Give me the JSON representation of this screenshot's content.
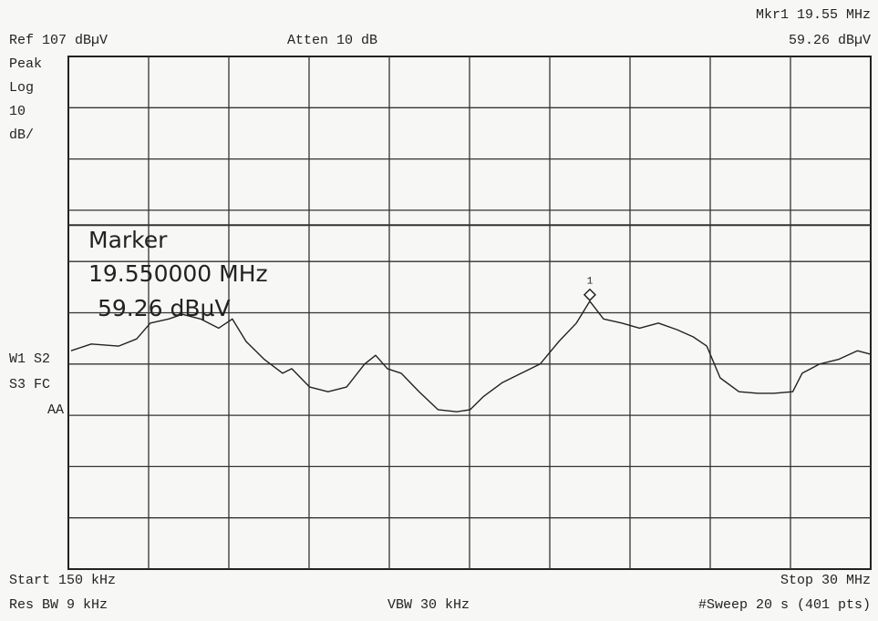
{
  "header": {
    "ref": "Ref 107 dBµV",
    "atten": "Atten 10 dB",
    "marker_freq": "Mkr1  19.55 MHz",
    "marker_level": "59.26 dBµV"
  },
  "side": {
    "detector": "Peak",
    "scale_type": "Log",
    "scale_value": "10",
    "scale_unit": "dB/",
    "trace_line1": "W1  S2",
    "trace_line2": "S3  FC",
    "trace_line3": "AA"
  },
  "marker_box": {
    "title": "Marker",
    "freq": "19.550000 MHz",
    "level": "59.26 dBµV"
  },
  "footer": {
    "start": "Start 150 kHz",
    "stop": "Stop 30 MHz",
    "rbw": "Res BW 9 kHz",
    "vbw": "VBW 30 kHz",
    "sweep": "#Sweep 20 s (401 pts)"
  },
  "chart_data": {
    "type": "line",
    "xlim": [
      0.15,
      30
    ],
    "ylim": [
      7,
      107
    ],
    "color": "#222222",
    "x": [
      0.25,
      1.0,
      2.02,
      2.69,
      3.2,
      3.88,
      4.39,
      5.07,
      5.74,
      6.25,
      6.76,
      7.44,
      8.12,
      8.46,
      9.13,
      9.81,
      10.5,
      11.17,
      11.58,
      12.02,
      12.53,
      13.2,
      13.9,
      14.6,
      15.1,
      15.6,
      16.3,
      17.0,
      17.7,
      18.4,
      19.05,
      19.55,
      20.06,
      20.74,
      21.4,
      22.1,
      22.8,
      23.4,
      23.9,
      24.4,
      25.1,
      25.8,
      26.4,
      27.1,
      27.45,
      28.1,
      28.8,
      29.5,
      30.0
    ],
    "values": [
      49.6,
      50.9,
      50.5,
      51.9,
      55.0,
      55.8,
      56.7,
      55.8,
      54.0,
      55.8,
      51.4,
      47.9,
      45.2,
      46.1,
      42.5,
      41.6,
      42.5,
      47.0,
      48.7,
      46.1,
      45.2,
      41.6,
      38.1,
      37.7,
      38.1,
      40.7,
      43.4,
      45.2,
      47.0,
      51.4,
      55.0,
      59.26,
      55.8,
      55.0,
      54.0,
      55.0,
      53.7,
      52.3,
      50.5,
      44.3,
      41.6,
      41.3,
      41.3,
      41.6,
      45.2,
      47.0,
      47.9,
      49.6,
      48.9
    ],
    "display_line": 74.1,
    "marker": {
      "x": 19.55,
      "y": 59.26,
      "label": "1"
    }
  }
}
